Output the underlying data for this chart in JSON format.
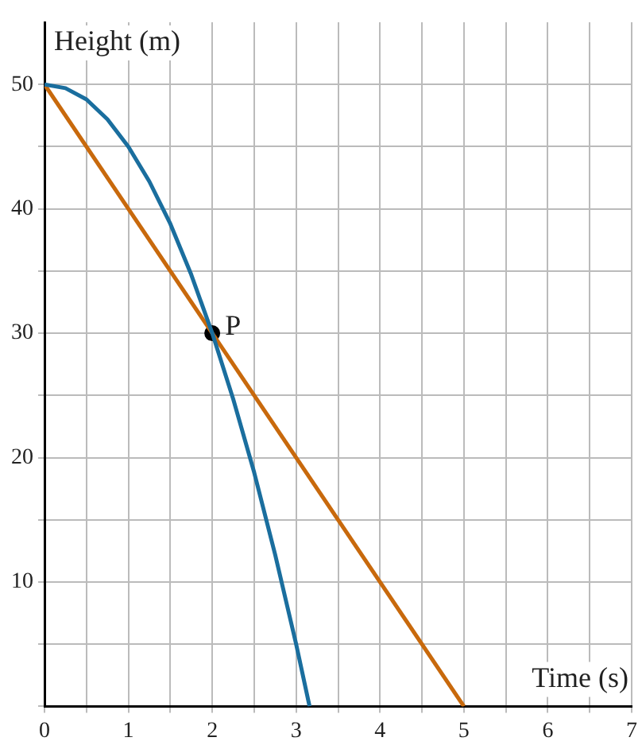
{
  "chart_data": {
    "type": "line",
    "xlabel": "Time (s)",
    "ylabel": "Height (m)",
    "xlim": [
      0,
      7
    ],
    "ylim": [
      0,
      55
    ],
    "xticks": [
      0,
      {
        "value": 0.5,
        "label": null
      },
      1,
      {
        "value": 1.5,
        "label": null
      },
      2,
      {
        "value": 2.5,
        "label": null
      },
      3,
      {
        "value": 3.5,
        "label": null
      },
      4,
      {
        "value": 4.5,
        "label": null
      },
      5,
      {
        "value": 5.5,
        "label": null
      },
      6,
      {
        "value": 6.5,
        "label": null
      },
      7
    ],
    "yticks": [
      {
        "value": 0,
        "label": null
      },
      {
        "value": 5,
        "label": null
      },
      10,
      {
        "value": 15,
        "label": null
      },
      20,
      {
        "value": 25,
        "label": null
      },
      30,
      {
        "value": 35,
        "label": null
      },
      40,
      {
        "value": 45,
        "label": null
      },
      50
    ],
    "grid": true,
    "series": [
      {
        "color": "#1a6e9e",
        "x": [
          0,
          0.25,
          0.5,
          0.75,
          1,
          1.25,
          1.5,
          1.75,
          2,
          2.25,
          2.5,
          2.75,
          3,
          3.16
        ],
        "values": [
          50,
          49.7,
          48.8,
          47.2,
          45,
          42.2,
          38.8,
          34.7,
          30,
          24.7,
          18.8,
          12.2,
          5,
          0
        ]
      },
      {
        "color": "#c8690c",
        "x": [
          0,
          5
        ],
        "values": [
          50,
          0
        ]
      },
      {
        "type": "scatter",
        "color": "#000000",
        "x": [
          2
        ],
        "values": [
          30
        ]
      }
    ],
    "annotations": [
      {
        "text": "P",
        "x": 2,
        "y": 30
      }
    ]
  }
}
